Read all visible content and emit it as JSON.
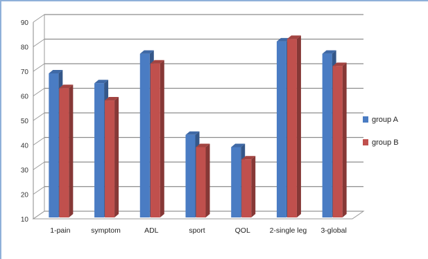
{
  "chart_data": {
    "type": "bar",
    "categories": [
      "1-pain",
      "symptom",
      "ADL",
      "sport",
      "QOL",
      "2-single leg",
      "3-global"
    ],
    "series": [
      {
        "name": "group A",
        "values": [
          70,
          66,
          78,
          45,
          40,
          83,
          78
        ],
        "color": "#4a7cc3"
      },
      {
        "name": "group B",
        "values": [
          64,
          59,
          74,
          40,
          35,
          84,
          73
        ],
        "color": "#c0504d"
      }
    ],
    "ylim": [
      10,
      90
    ],
    "yticks": [
      10,
      20,
      30,
      40,
      50,
      60,
      70,
      80,
      90
    ],
    "grid": true,
    "legend": "right",
    "title": "",
    "xlabel": "",
    "ylabel": ""
  }
}
